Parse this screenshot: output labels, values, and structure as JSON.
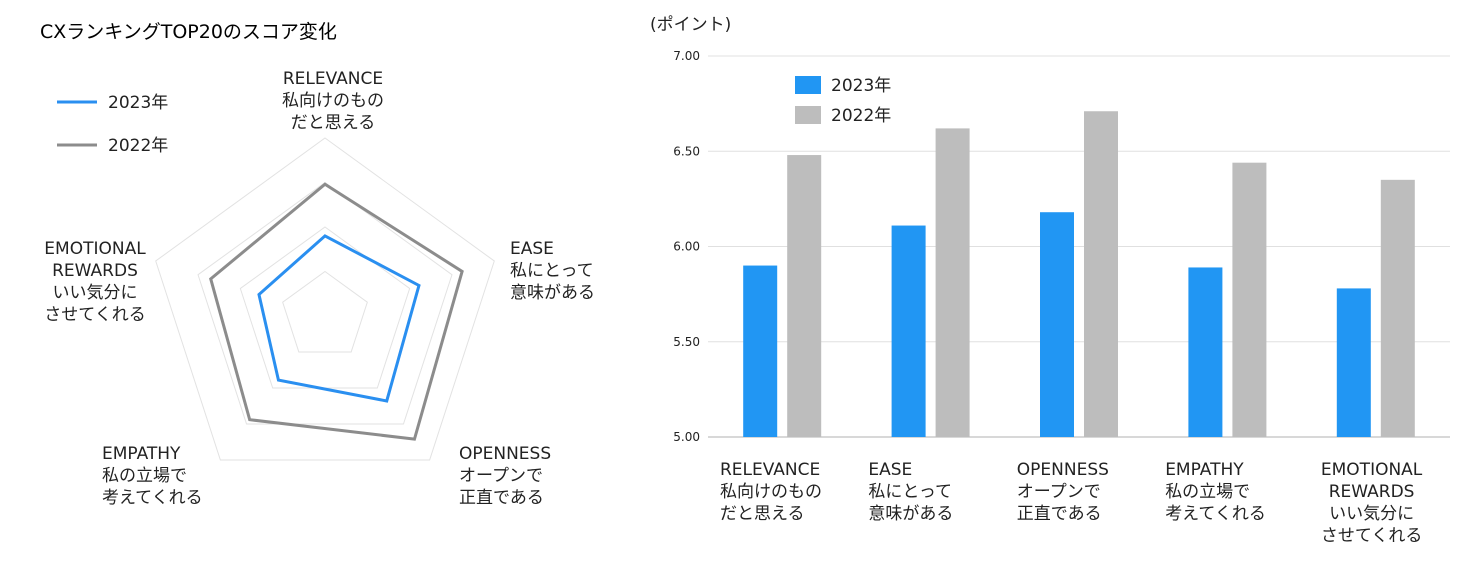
{
  "chart_data": [
    {
      "type": "radar",
      "title": "CXランキングTOP20のスコア変化",
      "axes": [
        [
          "RELEVANCE",
          "私向けのもの",
          "だと思える"
        ],
        [
          "EASE",
          "私にとって",
          "意味がある"
        ],
        [
          "OPENNESS",
          "オープンで",
          "正直である"
        ],
        [
          "EMPATHY",
          "私の立場で",
          "考えてくれる"
        ],
        [
          "EMOTIONAL",
          "REWARDS",
          "いい気分に",
          "させてくれる"
        ]
      ],
      "series": [
        {
          "name": "2023年",
          "values": [
            5.9,
            6.11,
            6.18,
            5.89,
            5.78
          ],
          "color": "#2a8ff0"
        },
        {
          "name": "2022年",
          "values": [
            6.48,
            6.62,
            6.71,
            6.44,
            6.35
          ],
          "color": "#8c8c8c"
        }
      ],
      "legend": "top-left",
      "grid": true
    },
    {
      "type": "bar",
      "ylabel": "(ポイント)",
      "ylim": [
        5.0,
        7.0
      ],
      "yticks": [
        "5.00",
        "5.50",
        "6.00",
        "6.50",
        "7.00"
      ],
      "categories": [
        [
          "RELEVANCE",
          "私向けのもの",
          "だと思える"
        ],
        [
          "EASE",
          "私にとって",
          "意味がある"
        ],
        [
          "OPENNESS",
          "オープンで",
          "正直である"
        ],
        [
          "EMPATHY",
          "私の立場で",
          "考えてくれる"
        ],
        [
          "EMOTIONAL",
          "REWARDS",
          "いい気分に",
          "させてくれる"
        ]
      ],
      "series": [
        {
          "name": "2023年",
          "values": [
            5.9,
            6.11,
            6.18,
            5.89,
            5.78
          ],
          "color": "#2196f3"
        },
        {
          "name": "2022年",
          "values": [
            6.48,
            6.62,
            6.71,
            6.44,
            6.35
          ],
          "color": "#bdbdbd"
        }
      ],
      "legend": "top-left",
      "grid": true
    }
  ]
}
